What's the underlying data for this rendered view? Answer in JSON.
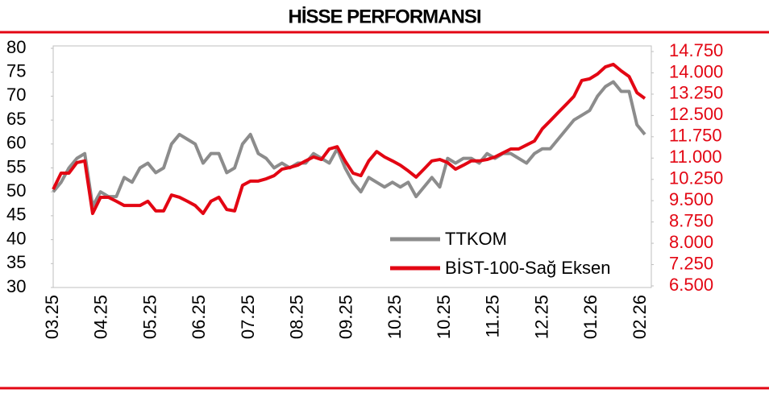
{
  "chart_data": {
    "type": "line",
    "title": "HİSSE PERFORMANSI",
    "xticks": [
      "03.25",
      "04.25",
      "05.25",
      "06.25",
      "07.25",
      "08.25",
      "09.25",
      "10.25",
      "10.25",
      "11.25",
      "12.25",
      "01.26",
      "02.26"
    ],
    "ylim": [
      30,
      80
    ],
    "yticks": [
      30,
      35,
      40,
      45,
      50,
      55,
      60,
      65,
      70,
      75,
      80
    ],
    "y2lim": [
      6500,
      14750
    ],
    "y2ticks": [
      {
        "value": 6500,
        "label": "6.500"
      },
      {
        "value": 7250,
        "label": "7.250"
      },
      {
        "value": 8000,
        "label": "8.000"
      },
      {
        "value": 8750,
        "label": "8.750"
      },
      {
        "value": 9500,
        "label": "9.500"
      },
      {
        "value": 10250,
        "label": "10.250"
      },
      {
        "value": 11000,
        "label": "11.000"
      },
      {
        "value": 11750,
        "label": "11.750"
      },
      {
        "value": 12500,
        "label": "12.500"
      },
      {
        "value": 13250,
        "label": "13.250"
      },
      {
        "value": 14000,
        "label": "14.000"
      },
      {
        "value": 14750,
        "label": "14.750"
      }
    ],
    "series": [
      {
        "name": "TTKOM",
        "color": "#8c8c8c",
        "values": [
          50,
          52,
          55,
          57,
          58,
          47,
          50,
          49,
          49,
          53,
          52,
          55,
          56,
          54,
          55,
          60,
          62,
          61,
          60,
          56,
          58,
          58,
          54,
          55,
          60,
          62,
          58,
          57,
          55,
          56,
          55,
          56,
          56,
          58,
          57,
          56,
          59,
          55,
          52,
          50,
          53,
          52,
          51,
          52,
          51,
          52,
          49,
          51,
          53,
          51,
          57,
          56,
          57,
          57,
          56,
          58,
          57,
          58,
          58,
          57,
          56,
          58,
          59,
          59,
          61,
          63,
          65,
          66,
          67,
          70,
          72,
          73,
          71,
          71,
          64,
          62
        ]
      },
      {
        "name": "BİST-100-Sağ Eksen",
        "color": "#e30613",
        "axis": "y2",
        "values": [
          9900,
          10470,
          10470,
          10840,
          10900,
          9050,
          9620,
          9620,
          9480,
          9330,
          9330,
          9330,
          9480,
          9140,
          9140,
          9700,
          9620,
          9480,
          9330,
          9050,
          9480,
          9620,
          9190,
          9140,
          10040,
          10190,
          10190,
          10270,
          10380,
          10610,
          10670,
          10750,
          10900,
          11040,
          10950,
          11320,
          11400,
          10900,
          10470,
          10380,
          10900,
          11230,
          11040,
          10900,
          10750,
          10550,
          10330,
          10610,
          10900,
          10950,
          10840,
          10610,
          10750,
          10900,
          10900,
          10950,
          11040,
          11180,
          11320,
          11320,
          11460,
          11600,
          12030,
          12310,
          12600,
          12880,
          13170,
          13730,
          13790,
          13960,
          14210,
          14300,
          14070,
          13870,
          13300,
          13100
        ]
      }
    ]
  }
}
